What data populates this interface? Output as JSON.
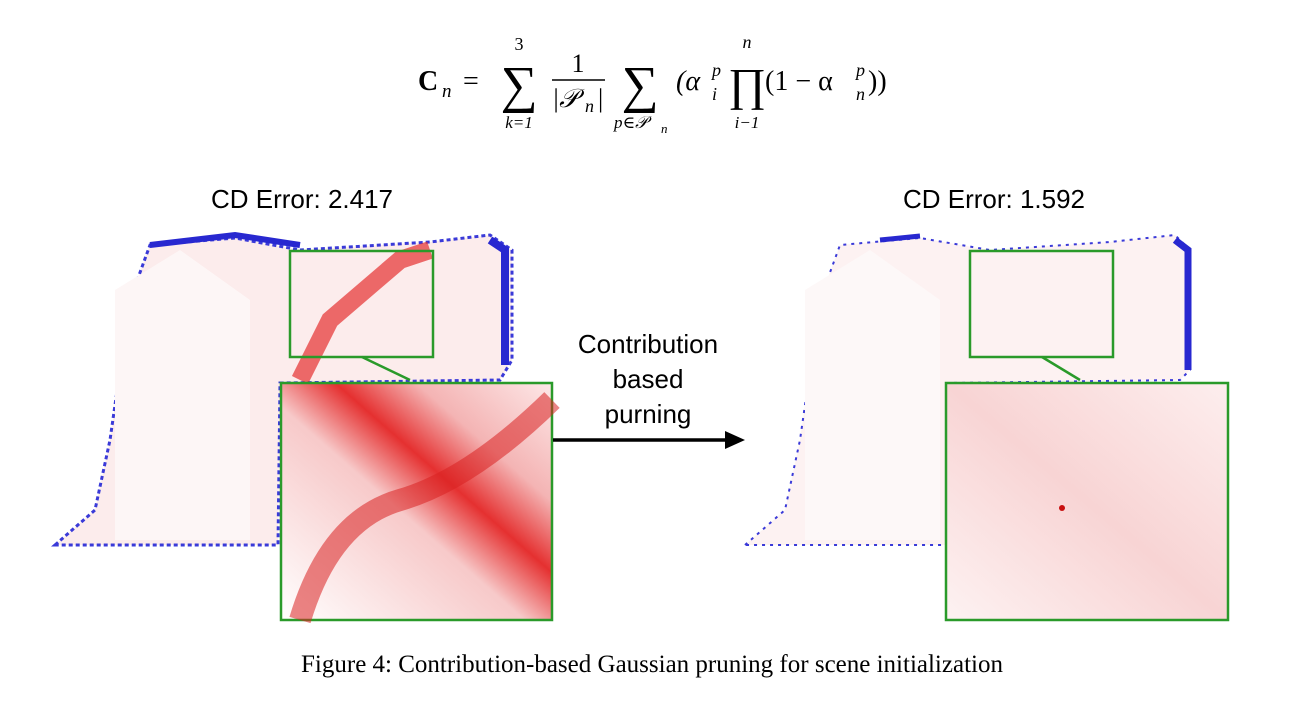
{
  "equation": {
    "tokens": [
      "C",
      "n",
      "=",
      "∑",
      "3",
      "k=1",
      "1",
      "|𝒫",
      "n",
      "|",
      "∑",
      "p∈𝒫",
      "n",
      "(α",
      "p",
      "i",
      "∏",
      "n",
      "i−1",
      "(1 − α",
      "p",
      "n",
      "))"
    ]
  },
  "figure": {
    "left_label": "CD Error: 2.417",
    "right_label": "CD Error: 1.592",
    "arrow_label": [
      "Contribution",
      "based",
      "purning"
    ]
  },
  "caption": "Figure 4: Contribution-based Gaussian pruning for scene initialization"
}
